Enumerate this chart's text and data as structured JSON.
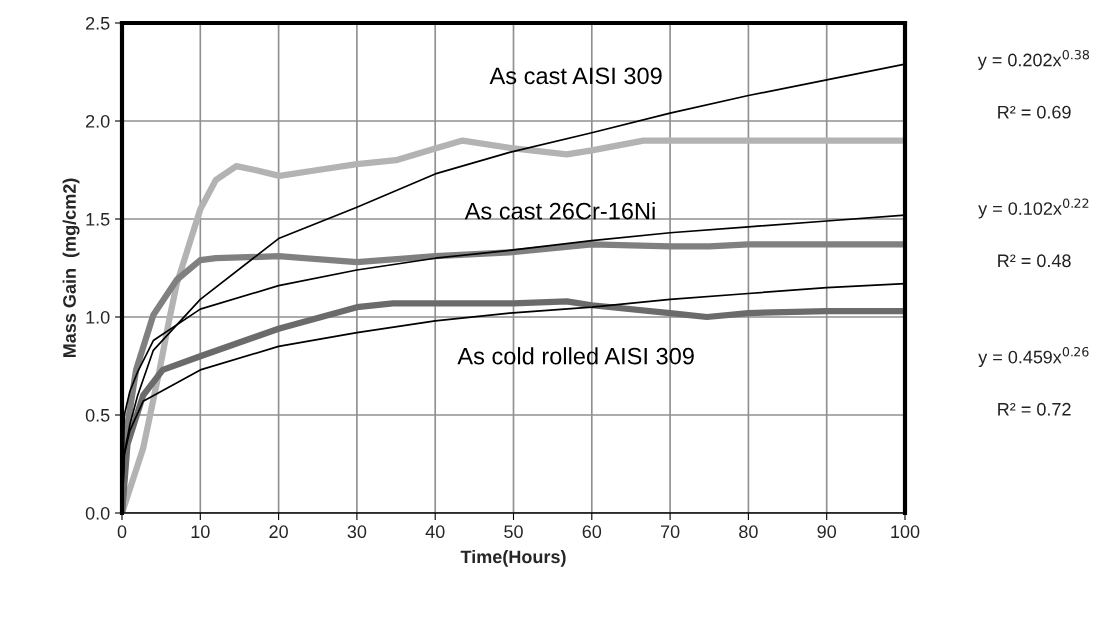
{
  "chart_data": {
    "type": "line",
    "xlabel": "Time(Hours)",
    "ylabel": "Mass Gain  (mg/cm2)",
    "xlim": [
      0,
      100
    ],
    "ylim": [
      0,
      2.5
    ],
    "xticks": [
      0,
      10,
      20,
      30,
      40,
      50,
      60,
      70,
      80,
      90,
      100
    ],
    "yticks": [
      {
        "value": 0,
        "label": "0.0"
      },
      {
        "value": 0.5,
        "label": "0.5"
      },
      {
        "value": 1.0,
        "label": "1.0"
      },
      {
        "value": 1.5,
        "label": "1.5"
      },
      {
        "value": 2.0,
        "label": "2.0"
      },
      {
        "value": 2.5,
        "label": "2.5"
      }
    ],
    "grid": true,
    "legend": false,
    "marker": "none",
    "series": [
      {
        "color": "#b3b3b3",
        "x": [
          0,
          2.7,
          4.8,
          6,
          7,
          10,
          12,
          14.6,
          17,
          20.1,
          25,
          30,
          35,
          40,
          43.5,
          50,
          56.8,
          60,
          66.6,
          70,
          80,
          90,
          100
        ],
        "values": [
          0,
          0.33,
          0.73,
          0.98,
          1.17,
          1.55,
          1.7,
          1.77,
          1.75,
          1.72,
          1.75,
          1.78,
          1.8,
          1.86,
          1.9,
          1.86,
          1.83,
          1.85,
          1.9,
          1.9,
          1.9,
          1.9,
          1.9
        ]
      },
      {
        "color": "#808080",
        "x": [
          0,
          0.7,
          1.8,
          4,
          7,
          10,
          12,
          20,
          30,
          40,
          49.5,
          60,
          70,
          75,
          80,
          90,
          100
        ],
        "values": [
          0,
          0.45,
          0.73,
          1.01,
          1.19,
          1.29,
          1.3,
          1.31,
          1.28,
          1.31,
          1.33,
          1.37,
          1.36,
          1.36,
          1.37,
          1.37,
          1.37
        ]
      },
      {
        "color": "#6b6b6b",
        "x": [
          0,
          0.7,
          2.7,
          5.2,
          10,
          20,
          30,
          34.6,
          40,
          50,
          56.8,
          60,
          70,
          74.7,
          80,
          90,
          100
        ],
        "values": [
          0,
          0.35,
          0.6,
          0.73,
          0.8,
          0.94,
          1.05,
          1.07,
          1.07,
          1.07,
          1.08,
          1.06,
          1.02,
          1.0,
          1.02,
          1.03,
          1.03
        ]
      },
      {
        "color": "#000000",
        "x": [
          0,
          0.3,
          1,
          2,
          4,
          10,
          20,
          30,
          40,
          49.5,
          60,
          70,
          80,
          90,
          100
        ],
        "values": [
          0,
          0.3,
          0.45,
          0.6,
          0.83,
          1.09,
          1.4,
          1.56,
          1.73,
          1.84,
          1.94,
          2.04,
          2.13,
          2.21,
          2.29
        ]
      },
      {
        "color": "#000000",
        "x": [
          0,
          0.3,
          1,
          2,
          4,
          10,
          20,
          30,
          40,
          49.5,
          60,
          70,
          80,
          90,
          100
        ],
        "values": [
          0,
          0.5,
          0.62,
          0.72,
          0.88,
          1.04,
          1.16,
          1.24,
          1.3,
          1.34,
          1.39,
          1.43,
          1.46,
          1.49,
          1.52
        ]
      },
      {
        "color": "#000000",
        "x": [
          0,
          0.3,
          1,
          2.7,
          10,
          20,
          30,
          40,
          49.5,
          60,
          70,
          80,
          90,
          100
        ],
        "values": [
          0,
          0.3,
          0.42,
          0.57,
          0.73,
          0.85,
          0.92,
          0.98,
          1.02,
          1.05,
          1.09,
          1.12,
          1.15,
          1.17
        ]
      }
    ],
    "annotations": [
      "As cast AISI 309",
      "As cast 26Cr-16Ni",
      "As cold rolled AISI 309",
      "y = 0.202x$^{0.38}$",
      "R² = 0.69",
      "y = 0.102x$^{0.22}$",
      "R² = 0.48",
      "y = 0.459x$^{0.26}$",
      "R² = 0.72"
    ]
  }
}
